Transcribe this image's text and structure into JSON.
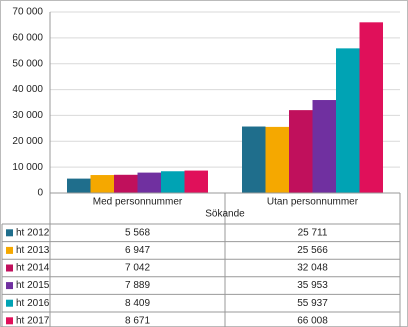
{
  "chart_data": {
    "type": "bar",
    "categories": [
      "Med personnummer",
      "Utan personnummer"
    ],
    "x_label": "Sökande",
    "series": [
      {
        "name": "ht 2012",
        "color": "#1f6e8c",
        "values": [
          5568,
          25711
        ],
        "value_labels": [
          "5 568",
          "25 711"
        ]
      },
      {
        "name": "ht 2013",
        "color": "#f5a800",
        "values": [
          6947,
          25566
        ],
        "value_labels": [
          "6 947",
          "25 566"
        ]
      },
      {
        "name": "ht 2014",
        "color": "#c0105c",
        "values": [
          7042,
          32048
        ],
        "value_labels": [
          "7 042",
          "32 048"
        ]
      },
      {
        "name": "ht 2015",
        "color": "#7030a0",
        "values": [
          7889,
          35953
        ],
        "value_labels": [
          "7 889",
          "35 953"
        ]
      },
      {
        "name": "ht 2016",
        "color": "#00a3b4",
        "values": [
          8409,
          55937
        ],
        "value_labels": [
          "8 409",
          "55 937"
        ]
      },
      {
        "name": "ht 2017",
        "color": "#e0105a",
        "values": [
          8671,
          66008
        ],
        "value_labels": [
          "8 671",
          "66 008"
        ]
      }
    ],
    "ylim": [
      0,
      70000
    ],
    "yticks": [
      0,
      {
        "value": 10000,
        "label": "10 000"
      },
      {
        "value": 20000,
        "label": "20 000"
      },
      {
        "value": 30000,
        "label": "30 000"
      },
      {
        "value": 40000,
        "label": "40 000"
      },
      {
        "value": 50000,
        "label": "50 000"
      },
      {
        "value": 60000,
        "label": "60 000"
      },
      {
        "value": 70000,
        "label": "70 000"
      }
    ],
    "grid": true
  }
}
